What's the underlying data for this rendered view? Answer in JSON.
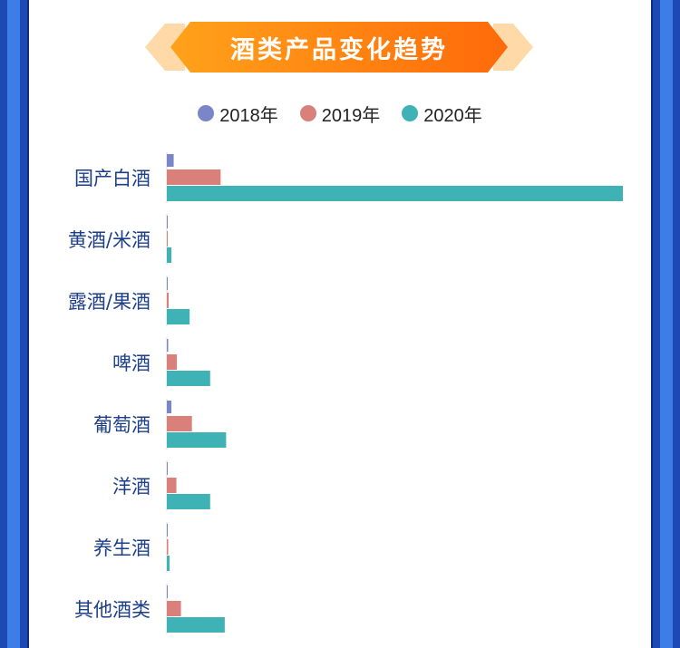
{
  "title": "酒类产品变化趋势",
  "colors": {
    "series_2018": "#7a86c8",
    "series_2019": "#d9807a",
    "series_2020": "#3fb2b5",
    "banner_start": "#ffa21a",
    "banner_end": "#ff6a0a",
    "banner_wing": "#ffd9a8",
    "label": "#1d3f8a"
  },
  "chart_data": {
    "type": "bar",
    "orientation": "horizontal",
    "title": "酒类产品变化趋势",
    "legend_position": "top",
    "categories": [
      "国产白酒",
      "黄酒/米酒",
      "露酒/果酒",
      "啤酒",
      "葡萄酒",
      "洋酒",
      "养生酒",
      "其他酒类"
    ],
    "series": [
      {
        "name": "2018年",
        "values": [
          1.5,
          0.1,
          0.1,
          0.3,
          1.0,
          0.1,
          0.1,
          0.1
        ]
      },
      {
        "name": "2019年",
        "values": [
          11.8,
          0.2,
          0.4,
          2.2,
          5.5,
          2.1,
          0.3,
          3.1
        ]
      },
      {
        "name": "2020年",
        "values": [
          100,
          1.0,
          5.0,
          9.5,
          13.0,
          9.5,
          0.6,
          12.7
        ]
      }
    ],
    "xlim": [
      0,
      100
    ],
    "grid": false
  }
}
